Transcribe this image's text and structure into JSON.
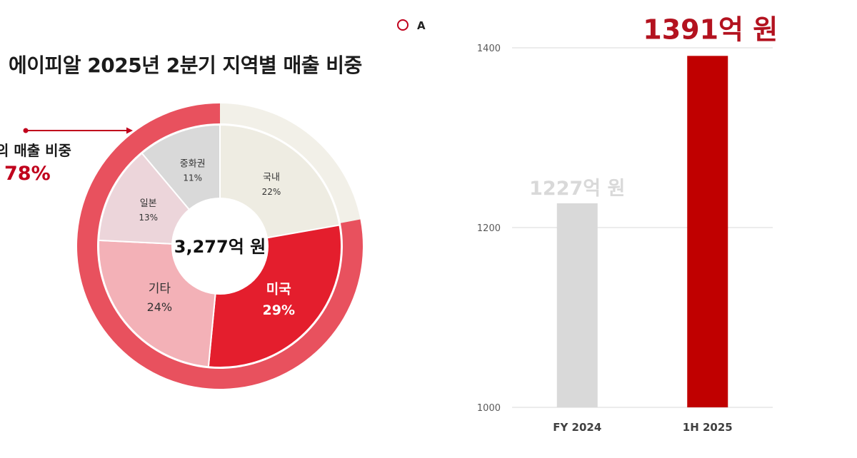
{
  "legend": {
    "marker": "red-ring",
    "label": "A"
  },
  "donut": {
    "title": "에이피알 2025년 2분기 지역별 매출 비중",
    "center_total": "3,277억 원",
    "callout": {
      "label": "의 매출 비중",
      "value": "78%"
    }
  },
  "chart_data": [
    {
      "type": "pie",
      "subtype": "donut",
      "title": "에이피알 2025년 2분기 지역별 매출 비중",
      "total_label": "3,277억 원",
      "categories": [
        "국내",
        "미국",
        "기타",
        "일본",
        "중화권"
      ],
      "values": [
        22,
        29,
        24,
        13,
        11
      ],
      "value_labels": [
        "22%",
        "29%",
        "24%",
        "13%",
        "11%"
      ],
      "unit": "%",
      "colors": [
        "#eeece2",
        "#e41e2d",
        "#f3b1b7",
        "#ecd5da",
        "#d9d9d9"
      ],
      "outer_ring": [
        {
          "name": "",
          "value": 22,
          "color": "#f2f0e8"
        },
        {
          "name": "",
          "value": 78,
          "color": "#e8515e",
          "label": "의 매출 비중 78%"
        }
      ]
    },
    {
      "type": "bar",
      "categories": [
        "FY 2024",
        "1H 2025"
      ],
      "values": [
        1227,
        1391
      ],
      "value_labels": [
        "1227억 원",
        "1391억 원"
      ],
      "colors": [
        "#d9d9d9",
        "#c00000"
      ],
      "ylim": [
        1000,
        1400
      ],
      "yticks": [
        1000,
        1200,
        1400
      ],
      "grid": true,
      "xlabel": "",
      "ylabel": ""
    }
  ]
}
